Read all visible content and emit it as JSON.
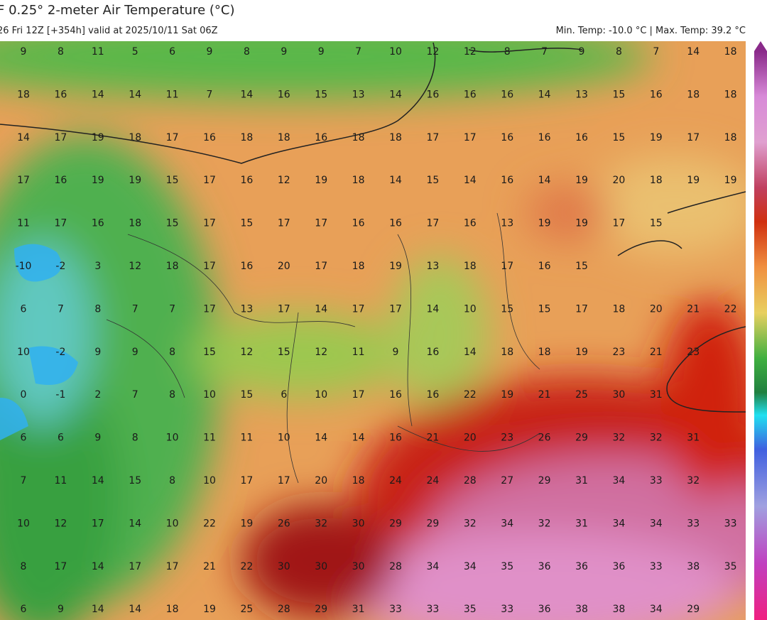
{
  "header": {
    "title": "F 0.25° 2-meter Air Temperature (°C)",
    "subtitle": "26 Fri 12Z [+354h] valid at 2025/10/11 Sat 06Z",
    "extremes": "Min. Temp: -10.0 °C | Max. Temp: 39.2 °C"
  },
  "grid": {
    "rows": [
      [
        9,
        8,
        11,
        5,
        6,
        9,
        8,
        9,
        9,
        7,
        10,
        12,
        12,
        8,
        7,
        9,
        8,
        7,
        14,
        18
      ],
      [
        18,
        16,
        14,
        14,
        11,
        7,
        14,
        16,
        15,
        13,
        14,
        16,
        16,
        16,
        14,
        13,
        15,
        16,
        18,
        18
      ],
      [
        14,
        17,
        19,
        18,
        17,
        16,
        18,
        18,
        16,
        18,
        18,
        17,
        17,
        16,
        16,
        16,
        15,
        19,
        17,
        18
      ],
      [
        17,
        16,
        19,
        19,
        15,
        17,
        16,
        12,
        19,
        18,
        14,
        15,
        14,
        16,
        14,
        19,
        20,
        18,
        19,
        19
      ],
      [
        11,
        17,
        16,
        18,
        15,
        17,
        15,
        17,
        17,
        16,
        16,
        17,
        16,
        13,
        19,
        19,
        17,
        15,
        null,
        null
      ],
      [
        -10,
        -2,
        3,
        12,
        18,
        17,
        16,
        20,
        17,
        18,
        19,
        13,
        18,
        17,
        16,
        15,
        null,
        null,
        null,
        null
      ],
      [
        6,
        7,
        8,
        7,
        7,
        17,
        13,
        17,
        14,
        17,
        17,
        14,
        10,
        15,
        15,
        17,
        18,
        20,
        21,
        22
      ],
      [
        10,
        -2,
        9,
        9,
        8,
        15,
        12,
        15,
        12,
        11,
        9,
        16,
        14,
        18,
        18,
        19,
        23,
        21,
        23,
        null
      ],
      [
        0,
        -1,
        2,
        7,
        8,
        10,
        15,
        6,
        10,
        17,
        16,
        16,
        22,
        19,
        21,
        25,
        30,
        31,
        null,
        null
      ],
      [
        6,
        6,
        9,
        8,
        10,
        11,
        11,
        10,
        14,
        14,
        16,
        21,
        20,
        23,
        26,
        29,
        32,
        32,
        31,
        null
      ],
      [
        7,
        11,
        14,
        15,
        8,
        10,
        17,
        17,
        20,
        18,
        24,
        24,
        28,
        27,
        29,
        31,
        34,
        33,
        32,
        null
      ],
      [
        10,
        12,
        17,
        14,
        10,
        22,
        19,
        26,
        32,
        30,
        29,
        29,
        32,
        34,
        32,
        31,
        34,
        34,
        33,
        33
      ],
      [
        8,
        17,
        14,
        17,
        17,
        21,
        22,
        30,
        30,
        30,
        28,
        34,
        34,
        35,
        36,
        36,
        36,
        33,
        38,
        35
      ],
      [
        6,
        9,
        14,
        14,
        18,
        19,
        25,
        28,
        29,
        31,
        33,
        33,
        35,
        33,
        36,
        38,
        38,
        34,
        29,
        null
      ]
    ]
  }
}
